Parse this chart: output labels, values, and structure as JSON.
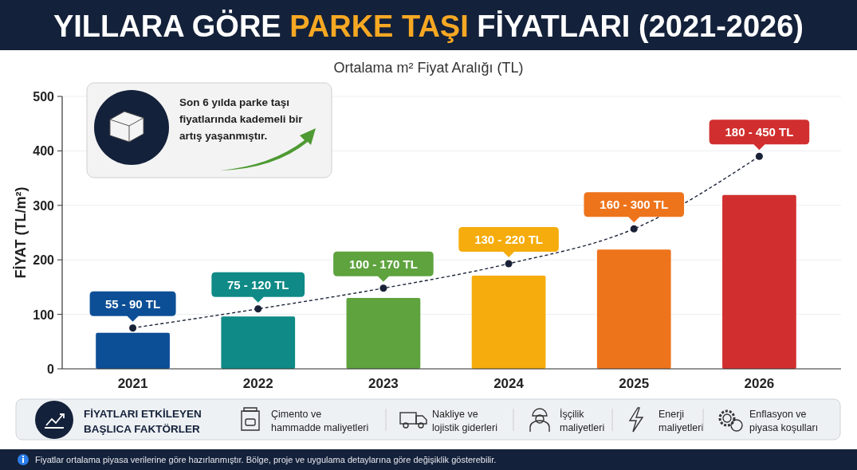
{
  "chart_data": {
    "type": "bar",
    "title": "YILLARA GÖRE PARKE TAŞI FİYATLARI (2021-2026)",
    "subtitle": "Ortalama m² Fiyat Aralığı (TL)",
    "ylabel": "FİYAT (TL/m²)",
    "categories": [
      "2021",
      "2022",
      "2023",
      "2024",
      "2025",
      "2026"
    ],
    "series": [
      {
        "colors": [
          "#0d4f96",
          "#0f8a86",
          "#5ea33e",
          "#f5ac0c",
          "#ee741c",
          "#d12f2f"
        ],
        "values": [
          66,
          96,
          130,
          171,
          219,
          319
        ]
      },
      {
        "type": "line",
        "color": "#1a2238",
        "values": [
          75,
          110,
          148,
          193,
          257,
          390
        ],
        "marker": "circle",
        "line_style": "dashed"
      }
    ],
    "ylim": [
      0,
      500
    ],
    "yticks": [
      0,
      100,
      200,
      300,
      400,
      500
    ],
    "grid": "y",
    "annotations": [
      {
        "text": "55 - 90 TL",
        "x": "2021",
        "y": 75
      },
      {
        "text": "75 - 120 TL",
        "x": "2022",
        "y": 110
      },
      {
        "text": "100 - 170 TL",
        "x": "2023",
        "y": 148
      },
      {
        "text": "130 - 220 TL",
        "x": "2024",
        "y": 193
      },
      {
        "text": "160 - 300 TL",
        "x": "2025",
        "y": 257
      },
      {
        "text": "180 - 450 TL",
        "x": "2026",
        "y": 390
      },
      "Son 6 yılda parke taşı fiyatlarında kademeli bir artış yaşanmıştır.",
      "FİYATLARI ETKİLEYEN BAŞLICA FAKTÖRLER",
      "Çimento ve hammadde maliyetleri",
      "Nakliye ve lojistik giderleri",
      "İşçilik maliyetleri",
      "Enerji maliyetleri",
      "Enflasyon ve piyasa koşulları",
      "Fiyatlar ortalama piyasa verilerine göre hazırlanmıştır. Bölge, proje ve uygulama detaylarına göre değişiklik gösterebilir."
    ]
  }
}
